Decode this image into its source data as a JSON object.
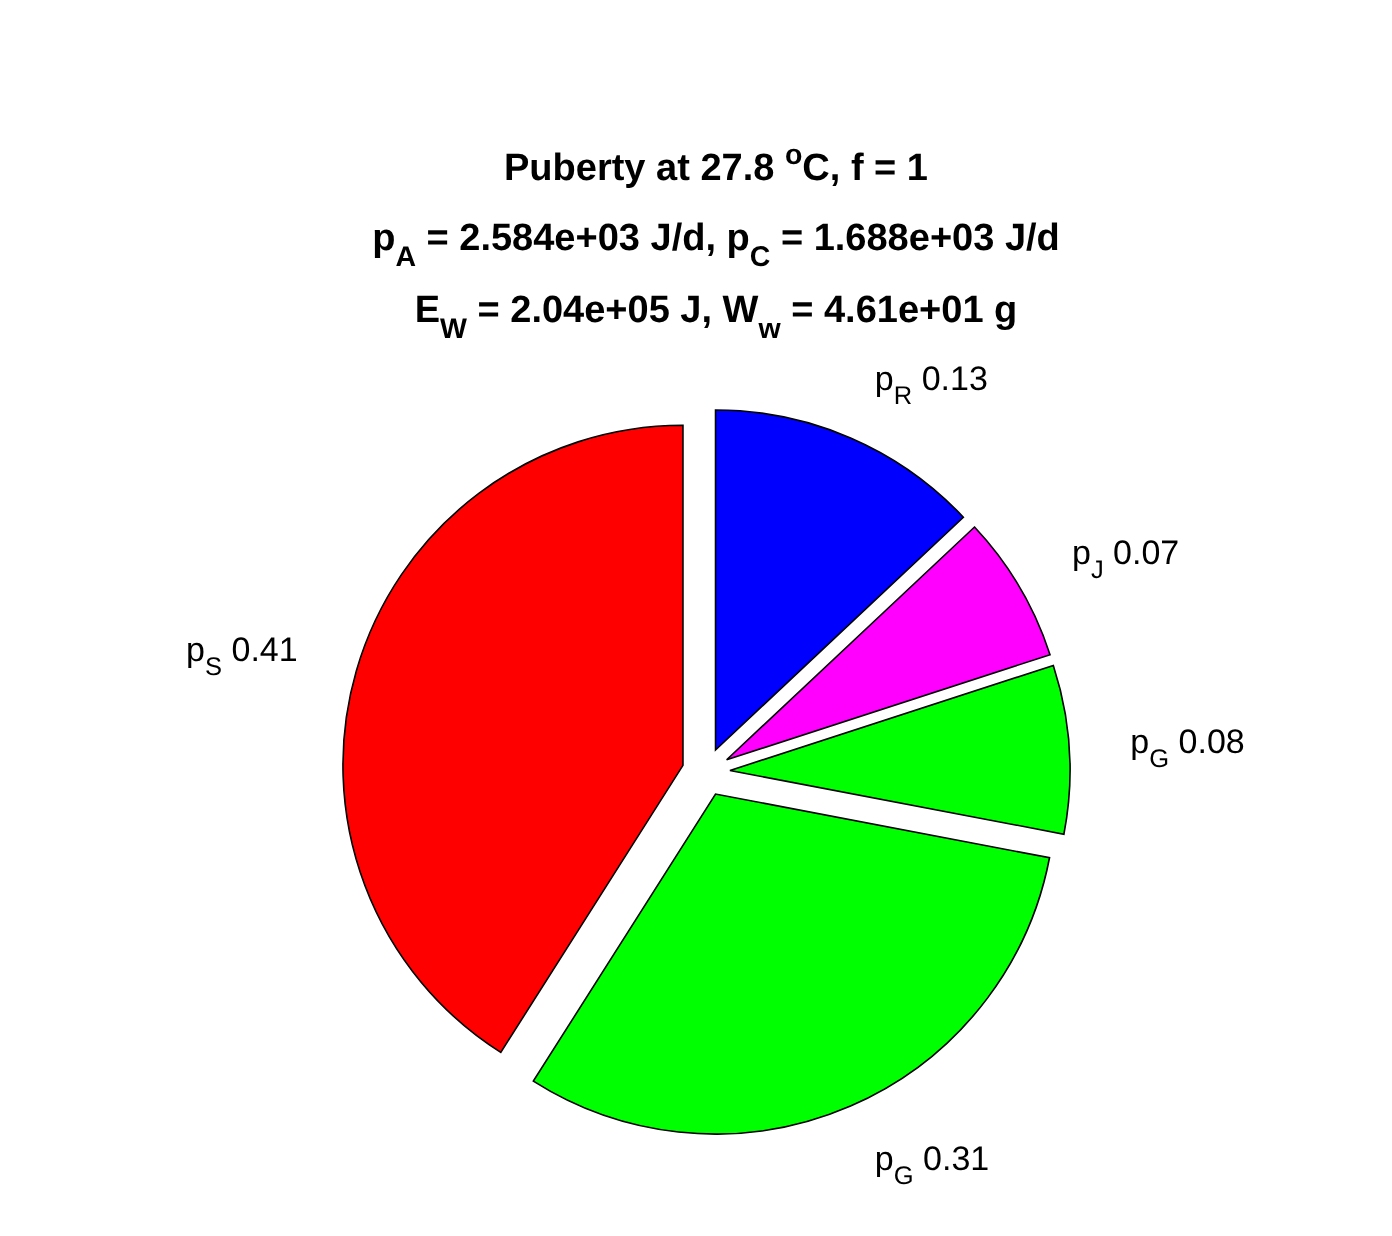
{
  "chart_data": {
    "type": "pie",
    "title": "Puberty at 27.8 $^{o}$C, f = 1\np$_{A}$ = 2.584e+03 J/d,  p$_{C}$ = 1.688e+03 J/d\nE$_{W}$ = 2.04e+05 J, W$_{w}$ = 4.61e+01 g",
    "categories": [
      "p$_{R}$",
      "p$_{J}$",
      "p$_{G}$",
      "p$_{G}$",
      "p$_{S}$"
    ],
    "values": [
      0.13,
      0.07,
      0.08,
      0.31,
      0.41
    ],
    "colors": [
      "#0000ff",
      "#ff00ff",
      "#00ff00",
      "#00ff00",
      "#ff0000"
    ],
    "data_labels": true
  }
}
